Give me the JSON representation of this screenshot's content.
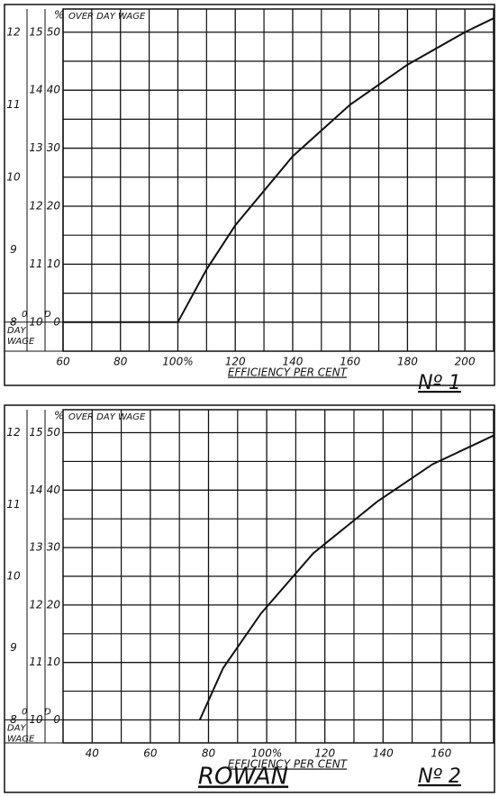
{
  "chart_data": [
    {
      "type": "line",
      "y_header": "%",
      "y_label": "OVER DAY WAGE",
      "day_wage_label": [
        "DAY",
        "WAGE"
      ],
      "x_label": "EFFICIENCY PER CENT",
      "caption": "Nº 1",
      "xlim": [
        60,
        210
      ],
      "ylim": [
        -5,
        54
      ],
      "xticks": [
        60,
        80,
        {
          "value": 100,
          "label": "100%"
        },
        120,
        140,
        160,
        180,
        200
      ],
      "yticks": [
        0,
        10,
        20,
        30,
        40,
        50
      ],
      "y_scales": [
        {
          "unit": "0",
          "ticks": [
            {
              "value": 0,
              "label": "8"
            },
            {
              "value": 12.5,
              "label": "9"
            },
            {
              "value": 25,
              "label": "10"
            },
            {
              "value": 37.5,
              "label": "11"
            },
            {
              "value": 50,
              "label": "12"
            }
          ]
        },
        {
          "unit": "D",
          "ticks": [
            {
              "value": 0,
              "label": "10"
            },
            {
              "value": 10,
              "label": "11"
            },
            {
              "value": 20,
              "label": "12"
            },
            {
              "value": 30,
              "label": "13"
            },
            {
              "value": 40,
              "label": "14"
            },
            {
              "value": 50,
              "label": "15"
            }
          ]
        }
      ],
      "grid": true,
      "color": "#111",
      "x": [
        60,
        100,
        110,
        120,
        140,
        160,
        180,
        200,
        210
      ],
      "values": [
        0,
        0,
        9.1,
        16.7,
        28.6,
        37.5,
        44.4,
        50,
        52.4
      ]
    },
    {
      "type": "line",
      "title": "ROWAN",
      "y_header": "%",
      "y_label": "OVER DAY WAGE",
      "day_wage_label": [
        "DAY",
        "WAGE"
      ],
      "x_label": "EFFICIENCY PER CENT",
      "caption": "Nº 2",
      "xlim": [
        30,
        178
      ],
      "ylim": [
        -4,
        54
      ],
      "xticks": [
        40,
        60,
        80,
        {
          "value": 100,
          "label": "100%"
        },
        120,
        140,
        160
      ],
      "yticks": [
        0,
        10,
        20,
        30,
        40,
        50
      ],
      "y_scales": [
        {
          "unit": "0",
          "ticks": [
            {
              "value": 0,
              "label": "8"
            },
            {
              "value": 12.5,
              "label": "9"
            },
            {
              "value": 25,
              "label": "10"
            },
            {
              "value": 37.5,
              "label": "11"
            },
            {
              "value": 50,
              "label": "12"
            }
          ]
        },
        {
          "unit": "D",
          "ticks": [
            {
              "value": 0,
              "label": "10"
            },
            {
              "value": 10,
              "label": "11"
            },
            {
              "value": 20,
              "label": "12"
            },
            {
              "value": 30,
              "label": "13"
            },
            {
              "value": 40,
              "label": "14"
            },
            {
              "value": 50,
              "label": "15"
            }
          ]
        }
      ],
      "grid": true,
      "color": "#111",
      "x": [
        77,
        85,
        98,
        116,
        138,
        157,
        178
      ],
      "values": [
        0,
        9,
        18.5,
        29,
        38,
        44.5,
        49.5
      ]
    }
  ]
}
